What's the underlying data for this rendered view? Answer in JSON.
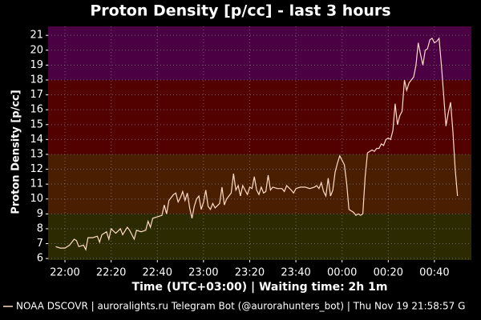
{
  "chart_data": {
    "type": "line",
    "title": "Proton Density [p/cc] - last 3 hours",
    "x_label": "Time (UTC+03:00) | Waiting time: 2h 1m",
    "y_label": "Proton Density [p/cc]",
    "footer": "NOAA DSCOVR | auroralights.ru Telegram Bot (@aurorahunters_bot) | Thu Nov 19 21:58:57 G",
    "color": "#ffdcc8",
    "grid": true,
    "xlim": [
      -7.3,
      176
    ],
    "ylim": [
      5.9,
      21.6
    ],
    "yticks": [
      6,
      7,
      8,
      9,
      10,
      11,
      12,
      13,
      14,
      15,
      16,
      17,
      18,
      19,
      20,
      21
    ],
    "xticks": [
      {
        "value": 0,
        "label": "22:00"
      },
      {
        "value": 20,
        "label": "22:20"
      },
      {
        "value": 40,
        "label": "22:40"
      },
      {
        "value": 60,
        "label": "23:00"
      },
      {
        "value": 80,
        "label": "23:20"
      },
      {
        "value": 100,
        "label": "23:40"
      },
      {
        "value": 120,
        "label": "00:00"
      },
      {
        "value": 140,
        "label": "00:20"
      },
      {
        "value": 160,
        "label": "00:40"
      }
    ],
    "bands": [
      {
        "from": 5.9,
        "to": 9,
        "color": "#2b2a00"
      },
      {
        "from": 9,
        "to": 13,
        "color": "#4a1e00"
      },
      {
        "from": 13,
        "to": 18,
        "color": "#520000"
      },
      {
        "from": 18,
        "to": 21.6,
        "color": "#4a0042"
      }
    ],
    "x": [
      -4,
      -2,
      0,
      2,
      4,
      5,
      6,
      8,
      9,
      10,
      12,
      14,
      15,
      16,
      18,
      19,
      20,
      22,
      24,
      25,
      27,
      28,
      30,
      31,
      33,
      35,
      36,
      37,
      38,
      40,
      42,
      43,
      44,
      45,
      47,
      48,
      49,
      50,
      51,
      52,
      53,
      54,
      55,
      56,
      57,
      58,
      59,
      60,
      61,
      62,
      63,
      64,
      65,
      67,
      68,
      69,
      70,
      72,
      73,
      74,
      75,
      76,
      77,
      78,
      79,
      80,
      81,
      82,
      83,
      84,
      85,
      86,
      87,
      88,
      89,
      90,
      92,
      94,
      95,
      96,
      98,
      99,
      100,
      102,
      104,
      106,
      108,
      109,
      110,
      111,
      112,
      113,
      114,
      115,
      116,
      117,
      118,
      119,
      120,
      121,
      122,
      123,
      124,
      125,
      126,
      127,
      128,
      129,
      130,
      131,
      132,
      133,
      134,
      135,
      136,
      137,
      138,
      139,
      140,
      141,
      142,
      143,
      144,
      145,
      146,
      147,
      148,
      149,
      150,
      151,
      152,
      153,
      154,
      155,
      156,
      157,
      158,
      159,
      160,
      161,
      162,
      163,
      164,
      165,
      166,
      167,
      168,
      169,
      170
    ],
    "values": [
      6.8,
      6.7,
      6.7,
      6.9,
      7.3,
      7.2,
      6.8,
      6.9,
      6.6,
      7.4,
      7.4,
      7.5,
      7.1,
      7.6,
      7.8,
      7.3,
      8.0,
      7.7,
      8.0,
      7.6,
      8.1,
      7.9,
      7.3,
      7.9,
      7.8,
      7.9,
      8.5,
      8.1,
      8.7,
      8.8,
      8.9,
      9.6,
      9.0,
      9.9,
      10.3,
      10.4,
      9.8,
      10.1,
      10.5,
      9.9,
      10.4,
      9.4,
      8.7,
      9.5,
      10.0,
      10.2,
      9.3,
      9.8,
      10.6,
      9.5,
      9.3,
      9.7,
      9.4,
      9.7,
      10.8,
      9.6,
      10.0,
      10.4,
      11.7,
      10.6,
      10.9,
      10.2,
      10.9,
      10.6,
      10.3,
      10.8,
      10.7,
      11.5,
      10.6,
      10.3,
      10.8,
      10.4,
      10.5,
      11.6,
      10.6,
      10.8,
      10.7,
      10.7,
      10.5,
      10.9,
      10.6,
      10.4,
      10.7,
      10.8,
      10.8,
      10.7,
      10.8,
      10.9,
      10.7,
      11.1,
      10.5,
      10.2,
      11.4,
      10.2,
      10.6,
      11.8,
      12.4,
      12.9,
      12.6,
      12.3,
      11.0,
      9.3,
      9.2,
      9.1,
      8.9,
      9.0,
      8.9,
      9.0,
      11.5,
      13.1,
      13.2,
      13.3,
      13.2,
      13.4,
      13.4,
      13.7,
      13.6,
      14.0,
      14.1,
      14.0,
      14.6,
      16.4,
      15.0,
      15.6,
      15.9,
      18.0,
      17.3,
      17.8,
      18.0,
      18.2,
      19.0,
      20.5,
      19.7,
      19.0,
      20.0,
      20.1,
      20.7,
      20.8,
      20.5,
      20.6,
      20.8,
      19.0,
      17.0,
      14.9,
      15.8,
      16.5,
      14.5,
      12.0,
      10.2
    ]
  }
}
